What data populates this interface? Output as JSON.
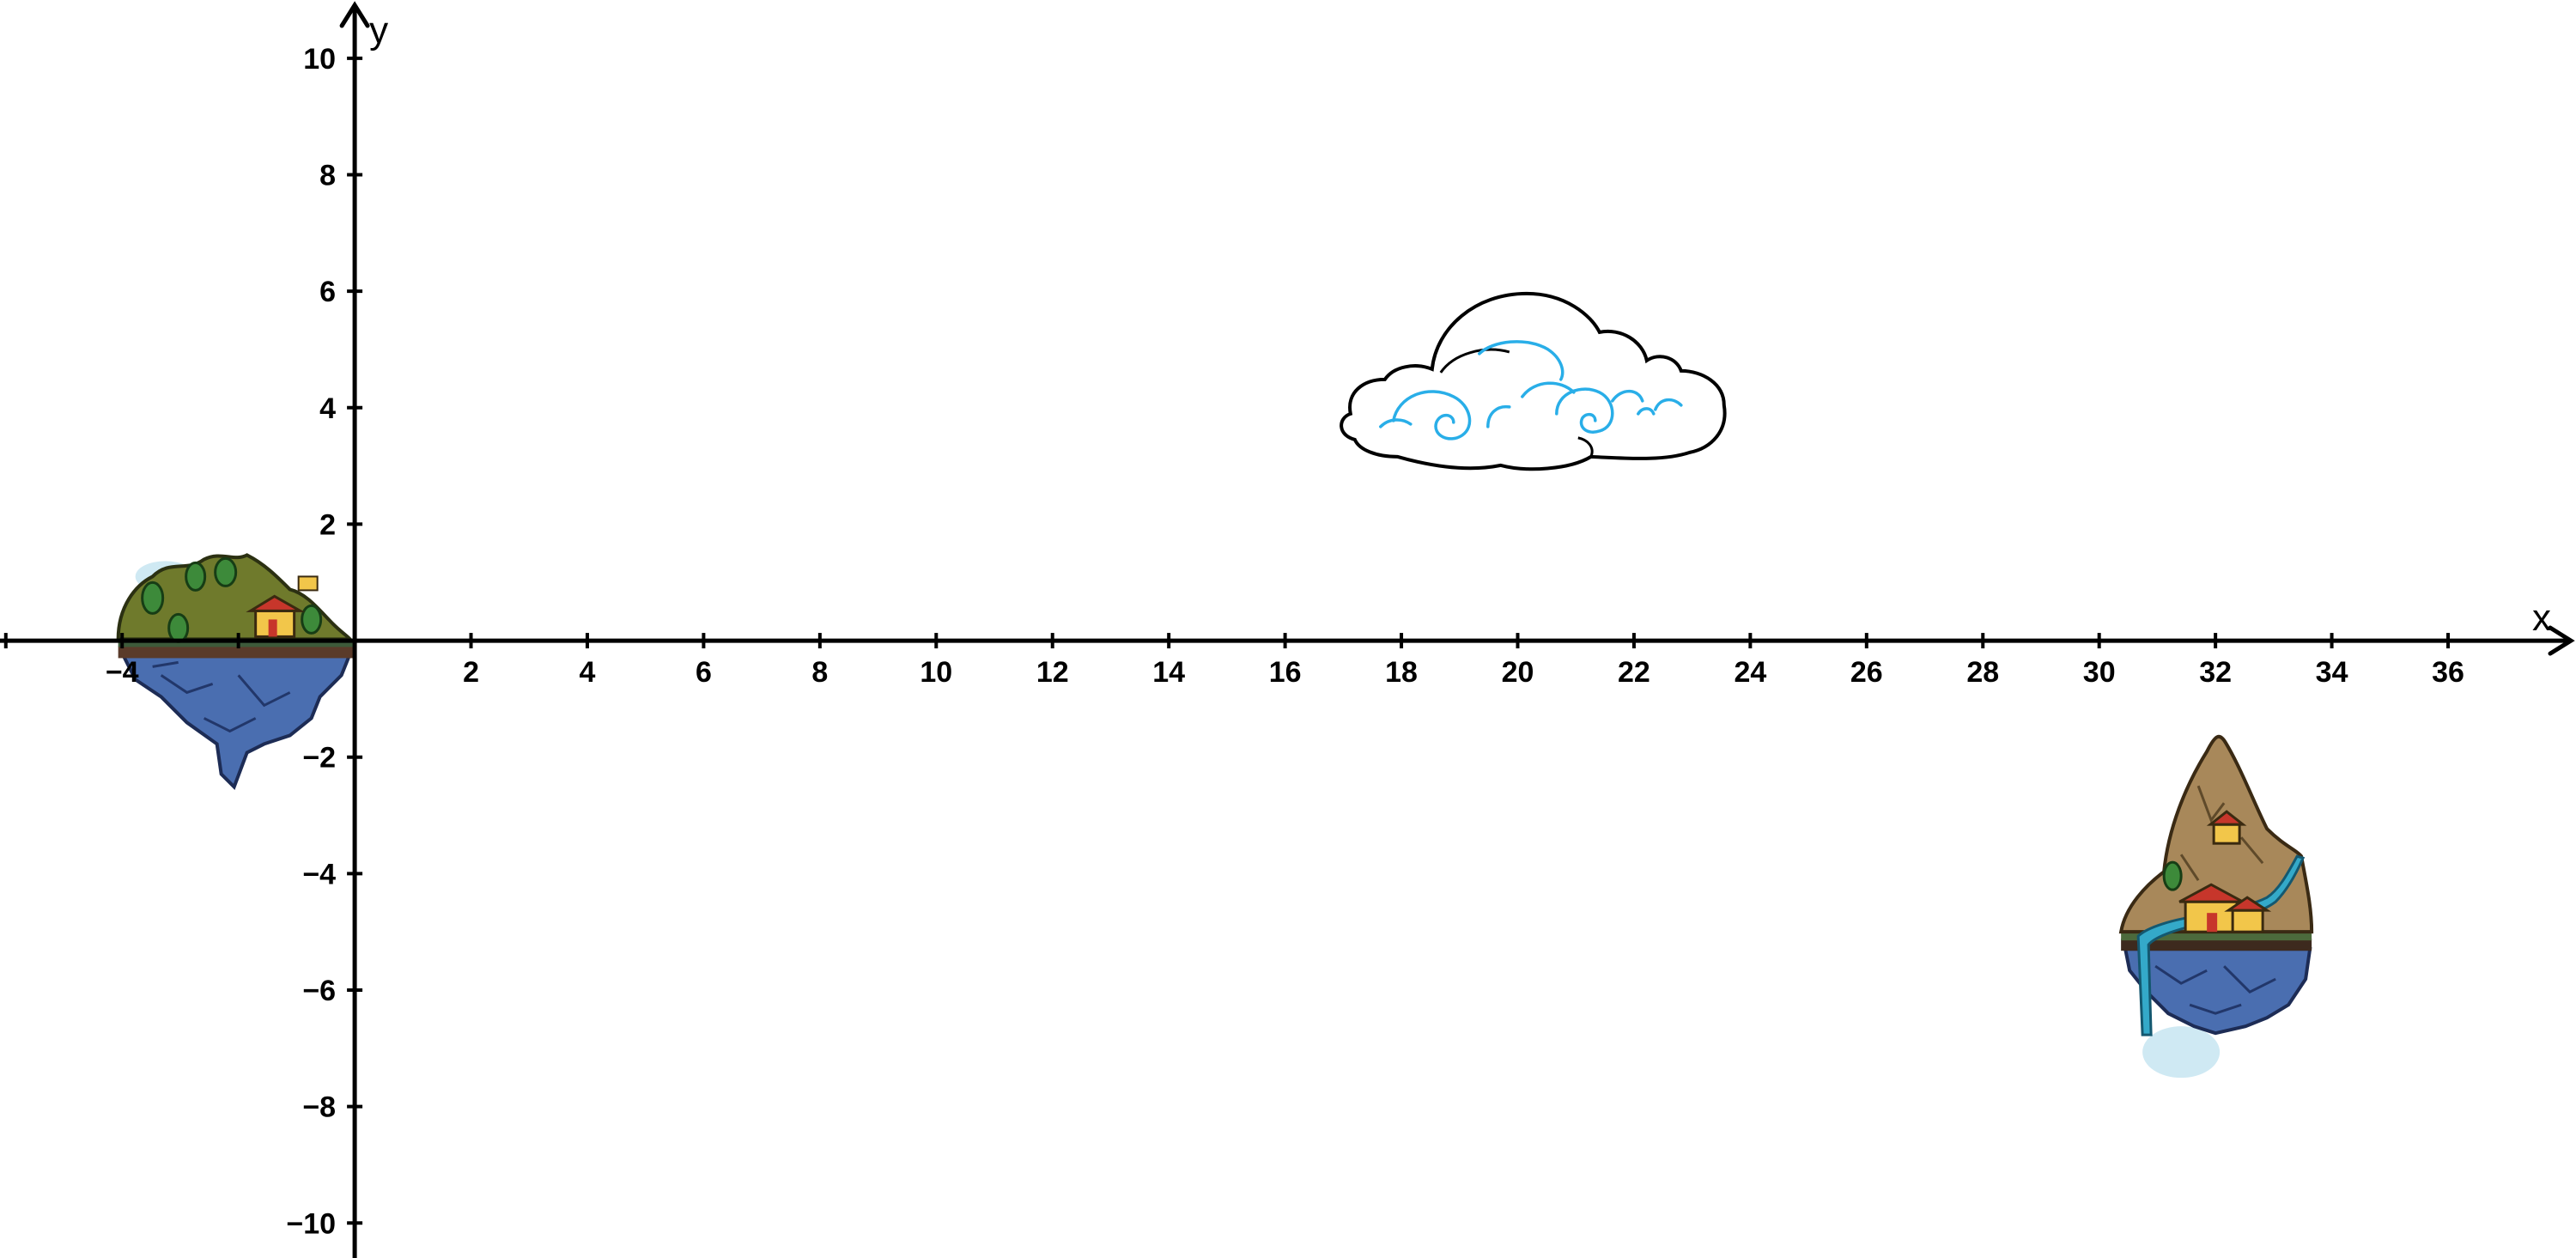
{
  "axes": {
    "x_label": "x",
    "y_label": "y",
    "x_ticks": [
      -4,
      2,
      4,
      6,
      8,
      10,
      12,
      14,
      16,
      18,
      20,
      22,
      24,
      26,
      28,
      30,
      32,
      34,
      36
    ],
    "y_ticks": [
      10,
      8,
      6,
      4,
      2,
      -2,
      -4,
      -6,
      -8,
      -10
    ],
    "x_range": [
      -6.1,
      38.2
    ],
    "y_range": [
      -10.6,
      11.0
    ],
    "x_tick_text": [
      "−4",
      "2",
      "4",
      "6",
      "8",
      "10",
      "12",
      "14",
      "16",
      "18",
      "20",
      "22",
      "24",
      "26",
      "28",
      "30",
      "32",
      "34",
      "36"
    ],
    "y_tick_text": [
      "10",
      "8",
      "6",
      "4",
      "2",
      "−2",
      "−4",
      "−6",
      "−8",
      "−10"
    ]
  },
  "objects": [
    {
      "name": "floating-island-left",
      "icon": "grassy-floating-island",
      "center": [
        -2.0,
        -0.3
      ]
    },
    {
      "name": "cloud",
      "icon": "cloud",
      "center": [
        20.3,
        3.6
      ]
    },
    {
      "name": "floating-island-right",
      "icon": "rocky-floating-island",
      "center": [
        32.0,
        -5.0
      ]
    }
  ],
  "colors": {
    "axis": "#000000",
    "cloud_swirl": "#29aee8",
    "island_grass": "#6f7a2c",
    "island_rock": "#4a6eb0",
    "mountain": "#a8885a",
    "water": "#34a9c9",
    "mist": "#cfe9f3"
  }
}
